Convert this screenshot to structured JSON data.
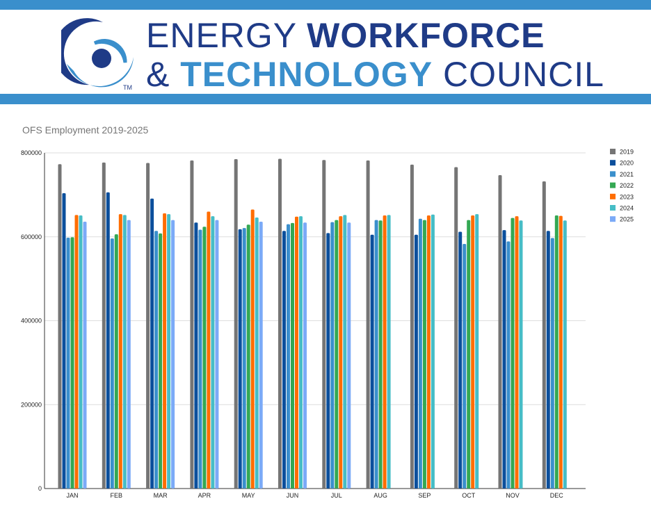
{
  "header": {
    "line1_thin": "ENERGY",
    "line1_bold": "WORKFORCE",
    "line2_amp": "&",
    "line2_bold": "TECHNOLOGY",
    "line2_thin": "COUNCIL",
    "trademark": "TM",
    "colors": {
      "band": "#3a8fcc",
      "navy": "#1f3b87",
      "light_blue": "#3a8fcc"
    }
  },
  "chart_data": {
    "type": "bar",
    "title": "OFS Employment 2019-2025",
    "xlabel": "",
    "ylabel": "",
    "ylim": [
      0,
      800000
    ],
    "yticks": [
      "0",
      "200000",
      "400000",
      "600000",
      "800000"
    ],
    "ytick_values": [
      0,
      200000,
      400000,
      600000,
      800000
    ],
    "grid": true,
    "legend_position": "right",
    "categories": [
      "JAN",
      "FEB",
      "MAR",
      "APR",
      "MAY",
      "JUN",
      "JUL",
      "AUG",
      "SEP",
      "OCT",
      "NOV",
      "DEC"
    ],
    "series": [
      {
        "name": "2019",
        "color": "#757575",
        "values": [
          773000,
          777000,
          776000,
          782000,
          785000,
          786000,
          783000,
          782000,
          772000,
          766000,
          747000,
          732000
        ]
      },
      {
        "name": "2020",
        "color": "#0b4f9c",
        "values": [
          704000,
          706000,
          691000,
          634000,
          618000,
          614000,
          609000,
          605000,
          605000,
          612000,
          616000,
          614000
        ]
      },
      {
        "name": "2021",
        "color": "#3a8fcc",
        "values": [
          598000,
          596000,
          614000,
          617000,
          621000,
          630000,
          635000,
          640000,
          643000,
          583000,
          589000,
          597000
        ]
      },
      {
        "name": "2022",
        "color": "#34a853",
        "values": [
          599000,
          606000,
          608000,
          624000,
          629000,
          633000,
          640000,
          639000,
          640000,
          640000,
          645000,
          651000
        ]
      },
      {
        "name": "2023",
        "color": "#ff6d01",
        "values": [
          652000,
          654000,
          656000,
          660000,
          665000,
          648000,
          649000,
          651000,
          651000,
          651000,
          649000,
          650000
        ]
      },
      {
        "name": "2024",
        "color": "#46bdc6",
        "values": [
          651000,
          652000,
          654000,
          649000,
          646000,
          649000,
          652000,
          652000,
          653000,
          654000,
          639000,
          639000
        ]
      },
      {
        "name": "2025",
        "color": "#7baaf7",
        "values": [
          636000,
          640000,
          640000,
          640000,
          636000,
          634000,
          634000,
          null,
          null,
          null,
          null,
          null
        ]
      }
    ]
  }
}
